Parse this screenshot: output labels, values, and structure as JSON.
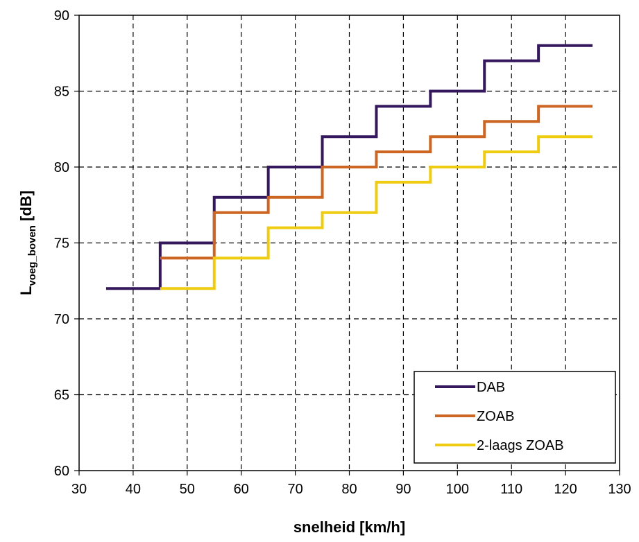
{
  "chart_data": {
    "type": "line",
    "step": true,
    "xlabel": "snelheid [km/h]",
    "ylabel": {
      "main": "L",
      "sub": "voeg_boven",
      "suffix": " [dB]"
    },
    "xlim": [
      30,
      130
    ],
    "ylim": [
      60,
      90
    ],
    "xticks": [
      30,
      40,
      50,
      60,
      70,
      80,
      90,
      100,
      110,
      120,
      130
    ],
    "yticks": [
      60,
      65,
      70,
      75,
      80,
      85,
      90
    ],
    "grid": "dashed",
    "legend_position": "bottom-right",
    "series": [
      {
        "name": "DAB",
        "color": "#35175e",
        "x": [
          35,
          45,
          55,
          65,
          75,
          85,
          95,
          105,
          115
        ],
        "values": [
          72,
          75,
          78,
          80,
          82,
          84,
          85,
          87,
          88
        ]
      },
      {
        "name": "ZOAB",
        "color": "#cc6622",
        "x": [
          45,
          55,
          65,
          75,
          85,
          95,
          105,
          115
        ],
        "values": [
          74,
          77,
          78,
          80,
          81,
          82,
          83,
          84
        ]
      },
      {
        "name": "2-laags ZOAB",
        "color": "#f0cc10",
        "x": [
          45,
          55,
          65,
          75,
          85,
          95,
          105,
          115
        ],
        "values": [
          72,
          74,
          76,
          77,
          79,
          80,
          81,
          82
        ]
      }
    ],
    "step_end_x": 125
  }
}
